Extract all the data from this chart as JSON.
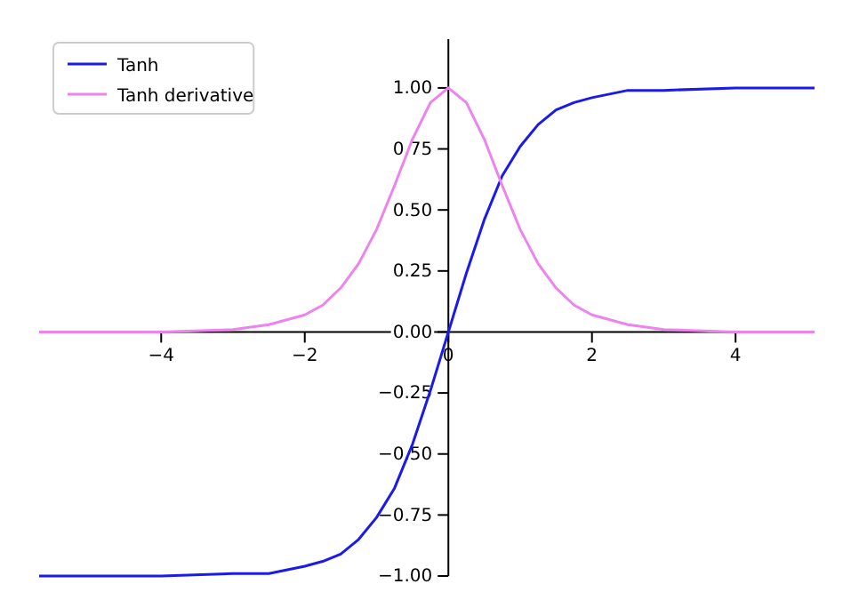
{
  "chart_data": {
    "type": "line",
    "x": [
      -5.7,
      -5,
      -4,
      -3,
      -2.5,
      -2,
      -1.75,
      -1.5,
      -1.25,
      -1,
      -0.75,
      -0.5,
      -0.25,
      0,
      0.25,
      0.5,
      0.75,
      1,
      1.25,
      1.5,
      1.75,
      2,
      2.5,
      3,
      4,
      5,
      5.1
    ],
    "series": [
      {
        "name": "Tanh",
        "color": "#1a1aee",
        "values": [
          -1,
          -1,
          -1,
          -0.99,
          -0.99,
          -0.96,
          -0.94,
          -0.91,
          -0.85,
          -0.76,
          -0.64,
          -0.46,
          -0.24,
          0,
          0.24,
          0.46,
          0.64,
          0.76,
          0.85,
          0.91,
          0.94,
          0.96,
          0.99,
          0.99,
          1,
          1,
          1
        ]
      },
      {
        "name": "Tanh derivative",
        "color": "#ee82ee",
        "values": [
          0,
          0,
          0,
          0.01,
          0.03,
          0.07,
          0.11,
          0.18,
          0.28,
          0.42,
          0.6,
          0.79,
          0.94,
          1,
          0.94,
          0.79,
          0.6,
          0.42,
          0.28,
          0.18,
          0.11,
          0.07,
          0.03,
          0.01,
          0,
          0,
          0
        ]
      }
    ],
    "xlim": [
      -5.7,
      5.1
    ],
    "ylim": [
      -1,
      1.2
    ],
    "xticks": [
      {
        "value": -4,
        "label": "−4"
      },
      {
        "value": -2,
        "label": "−2"
      },
      0,
      2,
      4
    ],
    "yticks": [
      {
        "value": -1,
        "label": "−1.00"
      },
      {
        "value": -0.75,
        "label": "−0.75"
      },
      {
        "value": -0.5,
        "label": "−0.50"
      },
      {
        "value": -0.25,
        "label": "−0.25"
      },
      {
        "value": 0,
        "label": "0.00"
      },
      {
        "value": 0.25,
        "label": "0.25"
      },
      {
        "value": 0.5,
        "label": "0.50"
      },
      {
        "value": 0.75,
        "label": "0.75"
      },
      {
        "value": 1,
        "label": "1.00"
      }
    ],
    "legend": "top left",
    "grid": false,
    "marker": "none",
    "line_style": "solid"
  }
}
